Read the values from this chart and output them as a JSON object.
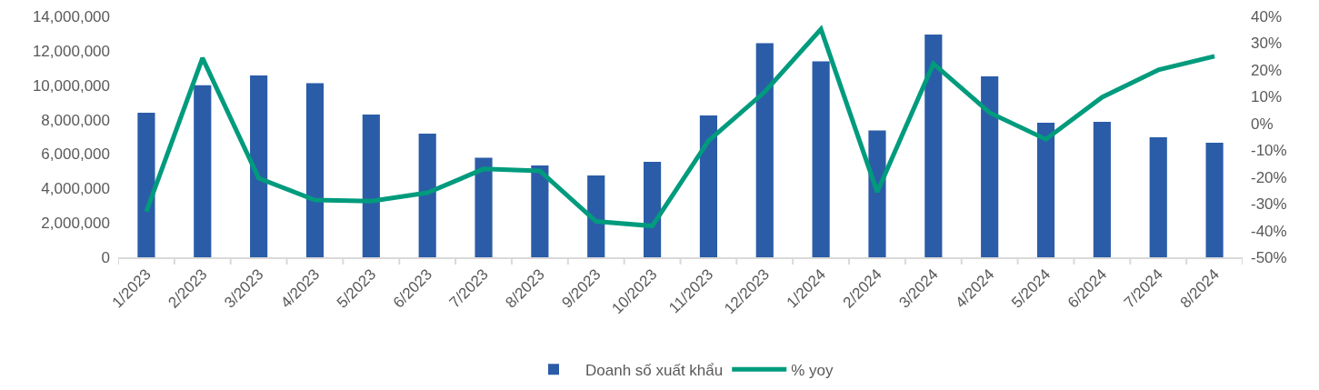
{
  "chart_data": {
    "type": "bar",
    "categories": [
      "1/2023",
      "2/2023",
      "3/2023",
      "4/2023",
      "5/2023",
      "6/2023",
      "7/2023",
      "8/2023",
      "9/2023",
      "10/2023",
      "11/2023",
      "12/2023",
      "1/2024",
      "2/2024",
      "3/2024",
      "4/2024",
      "5/2024",
      "6/2024",
      "7/2024",
      "8/2024"
    ],
    "series": [
      {
        "name": "Doanh số xuất khẩu",
        "color": "#2b5ca8",
        "values": [
          8400000,
          10000000,
          10570000,
          10120000,
          8290000,
          7180000,
          5790000,
          5340000,
          4750000,
          5550000,
          8240000,
          12440000,
          11380000,
          7370000,
          12940000,
          10510000,
          7820000,
          7870000,
          6970000,
          6660000
        ]
      },
      {
        "name": "% yoy",
        "type": "line",
        "axis": "y2",
        "color": "#009b7d",
        "values": [
          -33,
          24.4,
          -20.5,
          -28.6,
          -29,
          -25.9,
          -17,
          -17.7,
          -36.6,
          -38.3,
          -6.5,
          11.8,
          35.2,
          -25.6,
          22.3,
          4,
          -5.9,
          9.8,
          20,
          25.1
        ]
      }
    ],
    "ylim": [
      0,
      14000000
    ],
    "yticks": [
      0,
      {
        "value": 2000000,
        "label": "2,000,000"
      },
      {
        "value": 4000000,
        "label": "4,000,000"
      },
      {
        "value": 6000000,
        "label": "6,000,000"
      },
      {
        "value": 8000000,
        "label": "8,000,000"
      },
      {
        "value": 10000000,
        "label": "10,000,000"
      },
      {
        "value": 12000000,
        "label": "12,000,000"
      },
      {
        "value": 14000000,
        "label": "14,000,000"
      }
    ],
    "y2lim": [
      -50,
      40
    ],
    "y2ticks": [
      {
        "value": -50,
        "label": "-50%"
      },
      {
        "value": -40,
        "label": "-40%"
      },
      {
        "value": -30,
        "label": "-30%"
      },
      {
        "value": -20,
        "label": "-20%"
      },
      {
        "value": -10,
        "label": "-10%"
      },
      {
        "value": 0,
        "label": "0%"
      },
      {
        "value": 10,
        "label": "10%"
      },
      {
        "value": 20,
        "label": "20%"
      },
      {
        "value": 30,
        "label": "30%"
      },
      {
        "value": 40,
        "label": "40%"
      }
    ],
    "legend": "bottom"
  }
}
